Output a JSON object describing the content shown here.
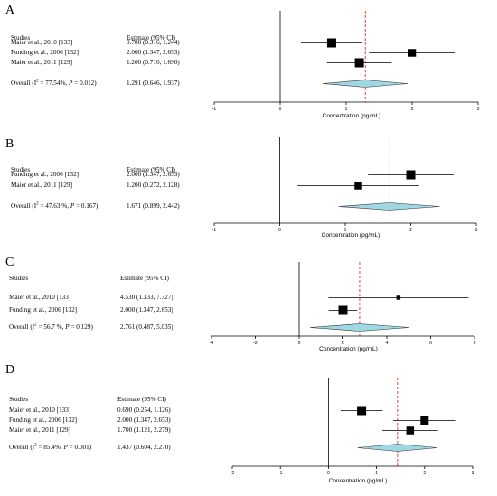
{
  "colors": {
    "diamond_fill": "#9fd7e3",
    "reference_line": "#e03030",
    "marker": "#000000"
  },
  "chart_data": [
    {
      "type": "forest",
      "panel_label": "A",
      "col_studies": "Studies",
      "col_estimate": "Estimate (95% CI)",
      "xlabel": "Concentration (pg/mL)",
      "xlim": [
        -1,
        3
      ],
      "ticks": [
        "-1",
        "0",
        "1",
        "2",
        "3"
      ],
      "overall_estimate": 1.291,
      "studies": [
        {
          "name": "Maier et al., 2010 [133]",
          "text": "0.780 (0.316, 1.244)",
          "est": 0.78,
          "lo": 0.316,
          "hi": 1.244,
          "size": 1.0
        },
        {
          "name": "Funding et al., 2006 [132]",
          "text": "2.000 (1.347, 2.653)",
          "est": 2.0,
          "lo": 1.347,
          "hi": 2.653,
          "size": 0.85
        },
        {
          "name": "Maier et al., 2011 [129]",
          "text": "1.200 (0.710, 1.690)",
          "est": 1.2,
          "lo": 0.71,
          "hi": 1.69,
          "size": 1.0
        }
      ],
      "overall": {
        "prefix": "Overall (I",
        "sup": "2",
        "eq": " = 77.54%, ",
        "p": "P",
        "pval": " = 0.012)",
        "text": "1.291 (0.646, 1.937)",
        "est": 1.291,
        "lo": 0.646,
        "hi": 1.937
      }
    },
    {
      "type": "forest",
      "panel_label": "B",
      "col_studies": "Studies",
      "col_estimate": "Estimate (95% CI)",
      "xlabel": "Concentration (pg/mL)",
      "xlim": [
        -1,
        3
      ],
      "ticks": [
        "-1",
        "0",
        "1",
        "2",
        "3"
      ],
      "overall_estimate": 1.671,
      "studies": [
        {
          "name": "Funding et al., 2006 [132]",
          "text": "2.000 (1.347, 2.653)",
          "est": 2.0,
          "lo": 1.347,
          "hi": 2.653,
          "size": 1.0
        },
        {
          "name": "Maier et al., 2011 [129]",
          "text": "1.200 (0.272, 2.128)",
          "est": 1.2,
          "lo": 0.272,
          "hi": 2.128,
          "size": 0.85
        }
      ],
      "overall": {
        "prefix": "Overall (I",
        "sup": "2",
        "eq": " = 47.63 %, ",
        "p": "P",
        "pval": " = 0.167)",
        "text": "1.671 (0.899, 2.442)",
        "est": 1.671,
        "lo": 0.899,
        "hi": 2.442
      }
    },
    {
      "type": "forest",
      "panel_label": "C",
      "col_studies": "Studies",
      "col_estimate": "Estimate (95% CI)",
      "xlabel": "Concentration (pg/mL)",
      "xlim": [
        -4,
        8
      ],
      "ticks": [
        "-4",
        "-2",
        "0",
        "2",
        "4",
        "6",
        "8"
      ],
      "overall_estimate": 2.761,
      "studies": [
        {
          "name": "Maier et al., 2010 [133]",
          "text": "4.530 (1.333, 7.727)",
          "est": 4.53,
          "lo": 1.333,
          "hi": 7.727,
          "size": 0.45
        },
        {
          "name": "Funding et al., 2006 [132]",
          "text": "2.000 (1.347, 2.653)",
          "est": 2.0,
          "lo": 1.347,
          "hi": 2.653,
          "size": 1.0
        }
      ],
      "overall": {
        "prefix": "Overall (I",
        "sup": "2",
        "eq": " = 56.7 %, ",
        "p": "P",
        "pval": " = 0.129)",
        "text": "2.761 (0.487, 5.035)",
        "est": 2.761,
        "lo": 0.487,
        "hi": 5.035
      }
    },
    {
      "type": "forest",
      "panel_label": "D",
      "col_studies": "Studies",
      "col_estimate": "Estimate (95% CI)",
      "xlabel": "Concentration (pg/mL)",
      "xlim": [
        -2,
        3
      ],
      "ticks": [
        "-2",
        "-1",
        "0",
        "1",
        "2",
        "3"
      ],
      "overall_estimate": 1.437,
      "studies": [
        {
          "name": "Maier et al., 2010 [133]",
          "text": "0.690 (0.254, 1.126)",
          "est": 0.69,
          "lo": 0.254,
          "hi": 1.126,
          "size": 1.0
        },
        {
          "name": "Funding et al., 2006 [132]",
          "text": "2.000 (1.347, 2.653)",
          "est": 2.0,
          "lo": 1.347,
          "hi": 2.653,
          "size": 0.9
        },
        {
          "name": "Maier et al., 2011 [129]",
          "text": "1.700 (1.121, 2.279)",
          "est": 1.7,
          "lo": 1.121,
          "hi": 2.279,
          "size": 0.85
        }
      ],
      "overall": {
        "prefix": "Overall (I",
        "sup": "2",
        "eq": " = 85.4%, ",
        "p": "P",
        "pval": " = 0.001)",
        "text": "1.437 (0.604, 2.270)",
        "est": 1.437,
        "lo": 0.604,
        "hi": 2.27
      }
    }
  ]
}
